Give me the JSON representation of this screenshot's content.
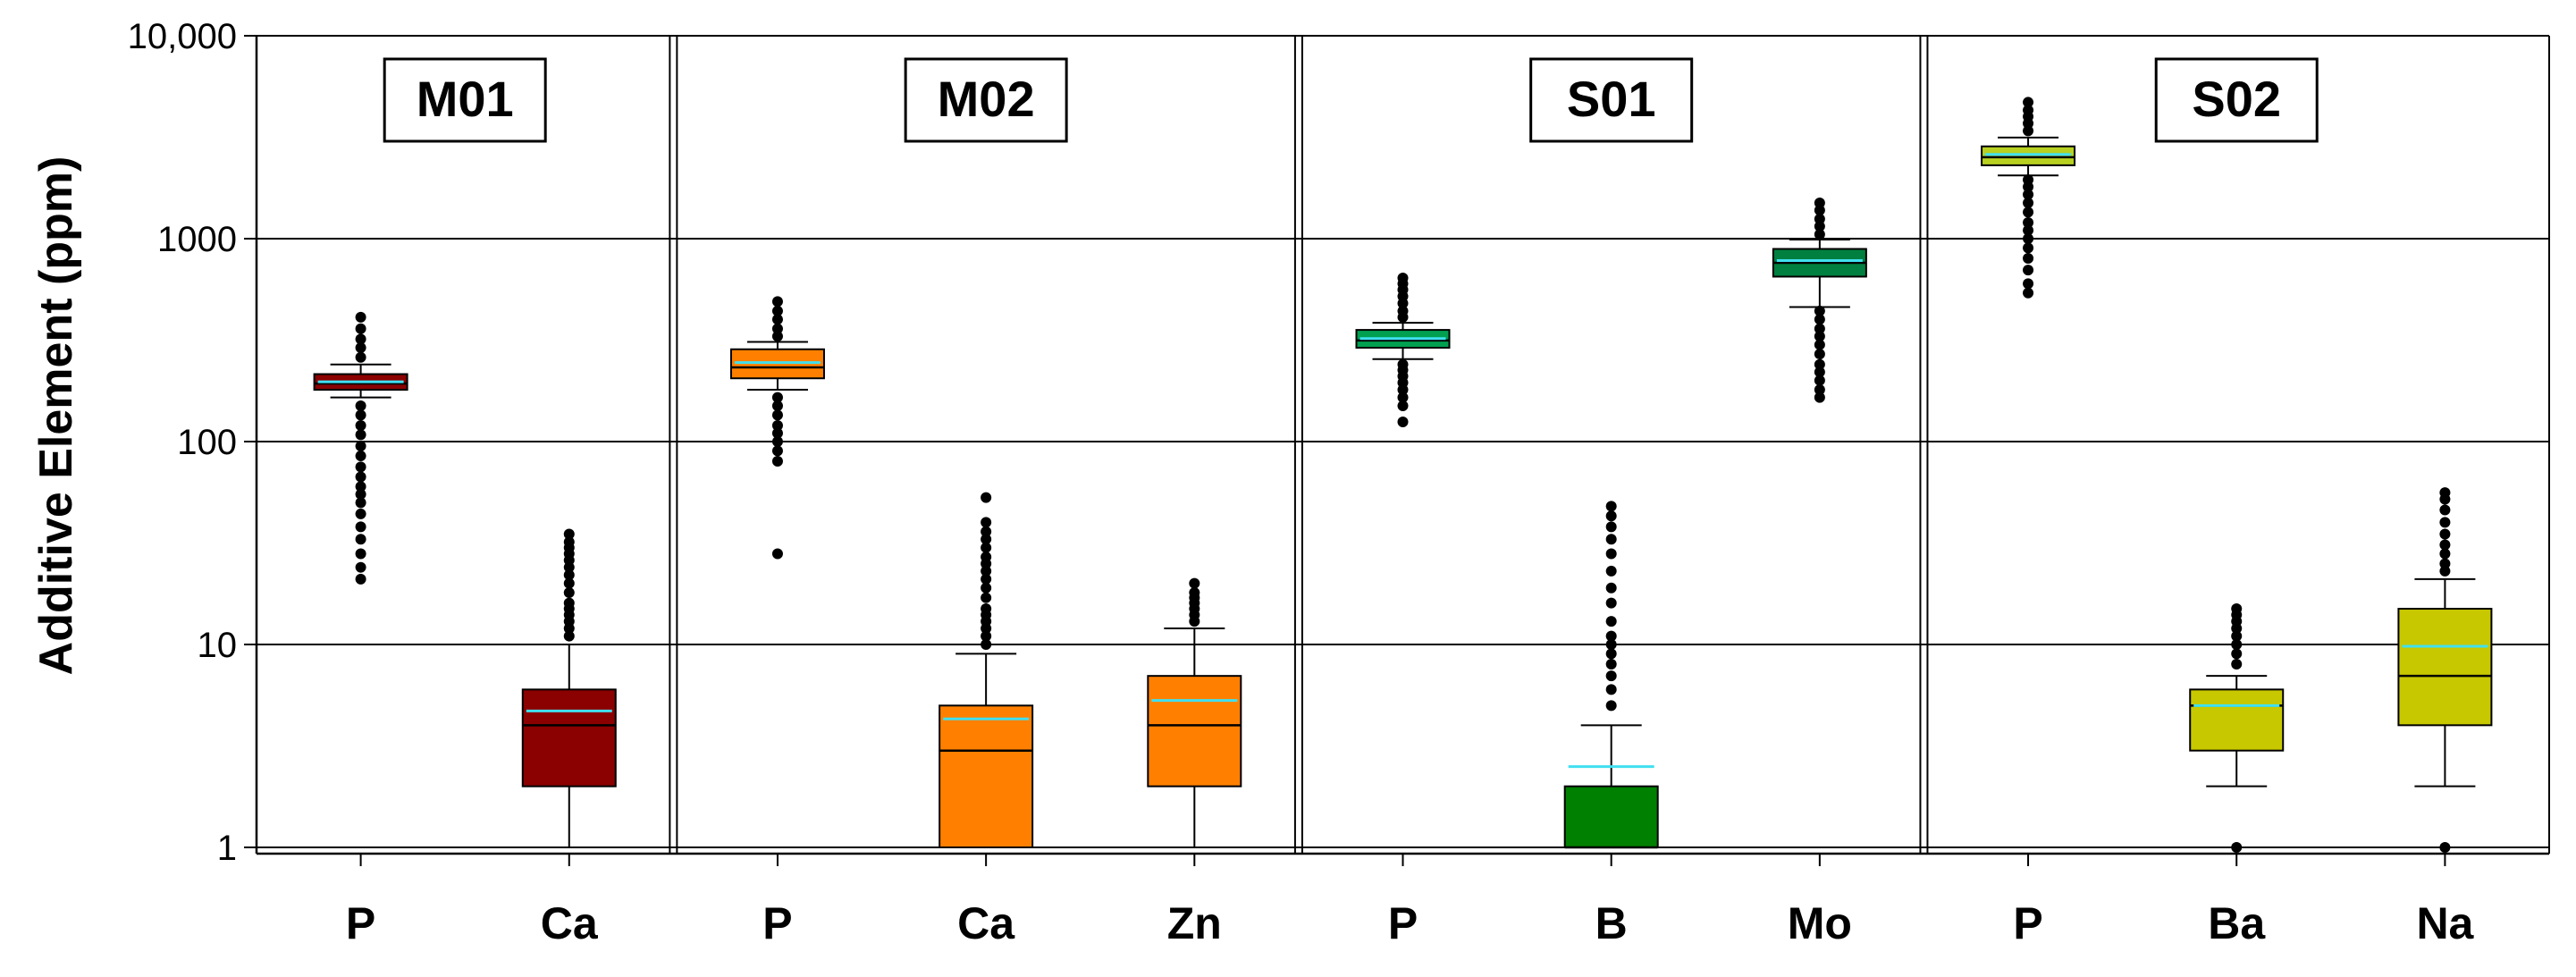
{
  "chart_data": {
    "type": "box",
    "ylabel": "Additive Element (ppm)",
    "yscale": "log",
    "ylim": [
      1,
      10000
    ],
    "yticks": [
      {
        "value": 1,
        "label": "1"
      },
      {
        "value": 10,
        "label": "10"
      },
      {
        "value": 100,
        "label": "100"
      },
      {
        "value": 1000,
        "label": "1000"
      },
      {
        "value": 10000,
        "label": "10,000"
      }
    ],
    "grid": true,
    "mean_line_color": "#40e0f0",
    "panels": [
      {
        "title": "M01",
        "boxes": [
          {
            "category": "P",
            "color": "#8b0000",
            "whisker_low": 165,
            "q1": 180,
            "median": 193,
            "q3": 215,
            "whisker_high": 240,
            "mean": 197,
            "outliers": [
              21,
              24,
              28,
              33,
              38,
              44,
              50,
              55,
              60,
              67,
              75,
              85,
              95,
              108,
              120,
              135,
              150,
              260,
              290,
              320,
              360,
              410
            ]
          },
          {
            "category": "Ca",
            "color": "#8b0000",
            "whisker_low": 1,
            "q1": 2,
            "median": 4,
            "q3": 6,
            "whisker_high": 10,
            "mean": 4.7,
            "outliers": [
              11,
              12,
              13,
              14,
              15,
              16,
              18,
              20,
              22,
              24,
              26,
              28,
              30,
              32,
              35
            ]
          }
        ]
      },
      {
        "title": "M02",
        "boxes": [
          {
            "category": "P",
            "color": "#ff8000",
            "whisker_low": 180,
            "q1": 205,
            "median": 232,
            "q3": 285,
            "whisker_high": 310,
            "mean": 245,
            "outliers": [
              28,
              80,
              90,
              100,
              110,
              120,
              135,
              150,
              165,
              330,
              360,
              400,
              440,
              490
            ]
          },
          {
            "category": "Ca",
            "color": "#ff8000",
            "whisker_low": 1,
            "q1": 1,
            "median": 3,
            "q3": 5,
            "whisker_high": 9,
            "mean": 4.3,
            "outliers": [
              10,
              11,
              12,
              13,
              14,
              15,
              17,
              19,
              21,
              23,
              25,
              27,
              30,
              33,
              36,
              40,
              53
            ]
          },
          {
            "category": "Zn",
            "color": "#ff8000",
            "whisker_low": 1,
            "q1": 2,
            "median": 4,
            "q3": 7,
            "whisker_high": 12,
            "mean": 5.3,
            "outliers": [
              13,
              14,
              15,
              16,
              17,
              18,
              20
            ]
          }
        ]
      },
      {
        "title": "S01",
        "boxes": [
          {
            "category": "P",
            "color": "#00a050",
            "whisker_low": 255,
            "q1": 290,
            "median": 315,
            "q3": 355,
            "whisker_high": 385,
            "mean": 322,
            "outliers": [
              125,
              150,
              165,
              180,
              195,
              210,
              225,
              240,
              410,
              440,
              480,
              520,
              560,
              600,
              640
            ]
          },
          {
            "category": "B",
            "color": "#008000",
            "whisker_low": 1,
            "q1": 1,
            "median": 1,
            "q3": 2,
            "whisker_high": 4,
            "mean": 2.5,
            "outliers": [
              5,
              6,
              7,
              8,
              9,
              10,
              11,
              13,
              16,
              19,
              23,
              28,
              33,
              38,
              43,
              48
            ]
          },
          {
            "category": "Mo",
            "color": "#008040",
            "whisker_low": 460,
            "q1": 650,
            "median": 760,
            "q3": 890,
            "whisker_high": 990,
            "mean": 780,
            "outliers": [
              165,
              180,
              200,
              220,
              240,
              270,
              300,
              330,
              360,
              400,
              440,
              1050,
              1150,
              1250,
              1380,
              1500
            ]
          }
        ]
      },
      {
        "title": "S02",
        "boxes": [
          {
            "category": "P",
            "color": "#b8d020",
            "whisker_low": 2050,
            "q1": 2300,
            "median": 2520,
            "q3": 2850,
            "whisker_high": 3150,
            "mean": 2600,
            "outliers": [
              540,
              600,
              700,
              800,
              900,
              1000,
              1100,
              1200,
              1350,
              1500,
              1650,
              1800,
              1950,
              3400,
              3700,
              4000,
              4300,
              4700
            ]
          },
          {
            "category": "Ba",
            "color": "#c8c800",
            "whisker_low": 2,
            "q1": 3,
            "median": 5,
            "q3": 6,
            "whisker_high": 7,
            "mean": 5,
            "outliers": [
              1,
              8,
              9,
              10,
              11,
              12,
              13,
              14,
              15
            ]
          },
          {
            "category": "Na",
            "color": "#c8c800",
            "whisker_low": 2,
            "q1": 4,
            "median": 7,
            "q3": 15,
            "whisker_high": 21,
            "mean": 9.8,
            "outliers": [
              1,
              23,
              25,
              28,
              31,
              35,
              40,
              46,
              52,
              56
            ]
          }
        ]
      }
    ]
  }
}
